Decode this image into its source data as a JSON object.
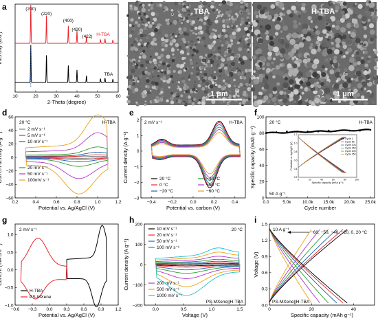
{
  "panels": {
    "a": {
      "label": "a"
    },
    "b": {
      "label": "b",
      "title": "TBA",
      "scale": "1 μm"
    },
    "c": {
      "label": "c",
      "title": "H-TBA",
      "scale": "1 μm"
    },
    "d": {
      "label": "d"
    },
    "e": {
      "label": "e"
    },
    "f": {
      "label": "f"
    },
    "g": {
      "label": "g"
    },
    "h": {
      "label": "h"
    },
    "i": {
      "label": "i"
    }
  },
  "colors": {
    "black": "#000000",
    "red": "#e8262e",
    "blue": "#1f5fb4",
    "green": "#2a9a2a",
    "purple": "#b037c8",
    "orange": "#e8a317",
    "cyan": "#1ec0d4",
    "grey": "#7f7f7f"
  },
  "chart_data": [
    {
      "id": "a",
      "type": "line",
      "xlabel": "2-Theta (degree)",
      "ylabel": "Intensity (a.u.)",
      "xlim": [
        10,
        60
      ],
      "xticks": [
        10,
        20,
        30,
        40,
        50,
        60
      ],
      "series": [
        {
          "name": "H-TBA",
          "color": "#e8262e"
        },
        {
          "name": "TBA",
          "color": "#000000"
        }
      ],
      "peaks": [
        17.6,
        25.2,
        35.8,
        40.0,
        44.6,
        51.4,
        53.6,
        57.4
      ],
      "peak_labels": [
        "(200)",
        "(220)",
        "(400)",
        "(420)",
        "(422)"
      ]
    },
    {
      "id": "d",
      "type": "line",
      "annotation": "20 °C",
      "tag": "H-TBA",
      "xlabel": "Potential vs. Ag/AgCl (V)",
      "ylabel": "Current density (A g⁻¹)",
      "xlim": [
        0.2,
        1.2
      ],
      "ylim": [
        -60,
        60
      ],
      "xticks": [
        0.2,
        0.4,
        0.6,
        0.8,
        1.0,
        1.2
      ],
      "yticks": [
        -60,
        -40,
        -20,
        0,
        20,
        40,
        60
      ],
      "series": [
        {
          "name": "2 mV s⁻¹",
          "scale": 1.5,
          "color": "#7f7f7f"
        },
        {
          "name": "5 mV s⁻¹",
          "scale": 3.5,
          "color": "#e8262e"
        },
        {
          "name": "10 mV s⁻¹",
          "scale": 7,
          "color": "#1f5fb4"
        },
        {
          "name": "20 mV s⁻¹",
          "scale": 14,
          "color": "#2a9a2a"
        },
        {
          "name": "50 mV s⁻¹",
          "scale": 33,
          "color": "#b037c8"
        },
        {
          "name": "100mV s⁻¹",
          "scale": 57,
          "color": "#e8a317"
        }
      ]
    },
    {
      "id": "e",
      "type": "line",
      "annotation": "2 mV s⁻¹",
      "tag": "H-TBA",
      "xlabel": "Potential vs.  carbon (V)",
      "ylabel": "Current density (A g⁻¹)",
      "xlim": [
        -0.5,
        0.5
      ],
      "ylim": [
        -3,
        2.2
      ],
      "xticks": [
        -0.4,
        -0.2,
        0.0,
        0.2,
        0.4
      ],
      "yticks": [
        -3,
        -2,
        -1,
        0,
        1,
        2
      ],
      "series": [
        {
          "name": "20 °C",
          "scale": 1.0,
          "color": "#000000"
        },
        {
          "name": "0 °C",
          "scale": 0.95,
          "color": "#e8262e"
        },
        {
          "name": "−20 °C",
          "scale": 0.88,
          "color": "#1f5fb4"
        },
        {
          "name": "−40 °C",
          "scale": 0.8,
          "color": "#2a9a2a"
        },
        {
          "name": "−50 °C",
          "scale": 0.72,
          "color": "#b037c8"
        },
        {
          "name": "−60 °C",
          "scale": 0.62,
          "color": "#e8a317"
        }
      ]
    },
    {
      "id": "f",
      "type": "scatter",
      "annotation": "20 °C",
      "tag": "H-TBA",
      "rate": "50 A g⁻¹",
      "xlabel": "Cycle number",
      "ylabel": "Specific capacity (mAh g⁻¹)",
      "xlim": [
        0,
        26000
      ],
      "ylim": [
        0,
        100
      ],
      "xticks": [
        0,
        5000,
        10000,
        15000,
        20000,
        25000
      ],
      "xticklabels": [
        "0.0",
        "5.0k",
        "10.0k",
        "15.0k",
        "20.0k",
        "25.0k"
      ],
      "yticks": [
        0,
        20,
        40,
        60,
        80,
        100
      ],
      "x": [
        0,
        2500,
        5000,
        7500,
        10000,
        12500,
        15000,
        17500,
        20000,
        22500,
        25000
      ],
      "values": [
        80,
        81,
        82,
        82,
        82,
        82,
        83,
        83,
        83,
        83,
        84
      ],
      "inset": {
        "xlabel": "Specific capacity (mAh g⁻¹)",
        "ylabel": "Potential vs. Ag/AgCl (V)",
        "xlim": [
          0,
          100
        ],
        "ylim": [
          0.2,
          1.2
        ],
        "xticks": [
          0,
          20,
          40,
          60,
          80,
          100
        ],
        "yticks": [
          0.2,
          0.4,
          0.6,
          0.8,
          1.0,
          1.2
        ],
        "series": [
          "Cycle 1",
          "Cycle 5K",
          "Cycle 10K",
          "Cycle 15K",
          "Cycle 20K",
          "Cycle 25K"
        ],
        "series_colors": [
          "#000000",
          "#e8262e",
          "#1f5fb4",
          "#2a9a2a",
          "#b037c8",
          "#e8a317"
        ]
      }
    },
    {
      "id": "g",
      "type": "line",
      "annotation": "2 mV s⁻¹",
      "xlabel": "Potential vs. Ag/AgCl (V)",
      "ylabel": "Current (mA cm⁻²)",
      "xlim": [
        -0.6,
        1.2
      ],
      "ylim": [
        -1.0,
        1.3
      ],
      "xticks": [
        -0.6,
        -0.3,
        0.0,
        0.3,
        0.6,
        0.9,
        1.2
      ],
      "yticks": [
        -1.0,
        -0.5,
        0.0,
        0.5,
        1.0
      ],
      "series": [
        {
          "name": "H-TBA",
          "color": "#000000"
        },
        {
          "name": "PS-MXene",
          "color": "#e8262e"
        }
      ]
    },
    {
      "id": "h",
      "type": "line",
      "annotation": "20 °C",
      "tag": "PS-MXene||H-TBA",
      "xlabel": "Voltage (V)",
      "ylabel": "Current density (A g⁻¹)",
      "xlim": [
        -0.2,
        1.6
      ],
      "ylim": [
        -200,
        200
      ],
      "xticks": [
        0.0,
        0.5,
        1.0,
        1.5
      ],
      "yticks": [
        -200,
        -100,
        0,
        100,
        200
      ],
      "series": [
        {
          "name": "10 mV s⁻¹",
          "scale": 5,
          "color": "#000000"
        },
        {
          "name": "20 mV s⁻¹",
          "scale": 10,
          "color": "#e8262e"
        },
        {
          "name": "50 mV s⁻¹",
          "scale": 20,
          "color": "#1f5fb4"
        },
        {
          "name": "100 mV s⁻¹",
          "scale": 32,
          "color": "#2a9a2a"
        },
        {
          "name": "200 mV s⁻¹",
          "scale": 50,
          "color": "#b037c8"
        },
        {
          "name": "500 mV s⁻¹",
          "scale": 75,
          "color": "#e8a317"
        },
        {
          "name": "1000 mV s⁻¹",
          "scale": 100,
          "color": "#1ec0d4"
        }
      ]
    },
    {
      "id": "i",
      "type": "line",
      "annotation": "10 A g⁻¹",
      "temps_label": "−60, −50, −40, −20, 0, 20 °C",
      "tag": "PS-MXene||H-TBA",
      "xlabel": "Specific capacity (mAh g⁻¹)",
      "ylabel": "Voltage (V)",
      "xlim": [
        0,
        50
      ],
      "ylim": [
        0,
        1.5
      ],
      "xticks": [
        0,
        20,
        40
      ],
      "yticks": [
        0.0,
        0.3,
        0.6,
        0.9,
        1.2,
        1.5
      ],
      "series": [
        {
          "name": "−60 °C",
          "capacity": 20,
          "color": "#e8a317"
        },
        {
          "name": "−50 °C",
          "capacity": 24,
          "color": "#b037c8"
        },
        {
          "name": "−40 °C",
          "capacity": 28,
          "color": "#2a9a2a"
        },
        {
          "name": "−20 °C",
          "capacity": 32,
          "color": "#1f5fb4"
        },
        {
          "name": "0 °C",
          "capacity": 35,
          "color": "#e8262e"
        },
        {
          "name": "20 °C",
          "capacity": 37,
          "color": "#000000"
        }
      ]
    }
  ]
}
